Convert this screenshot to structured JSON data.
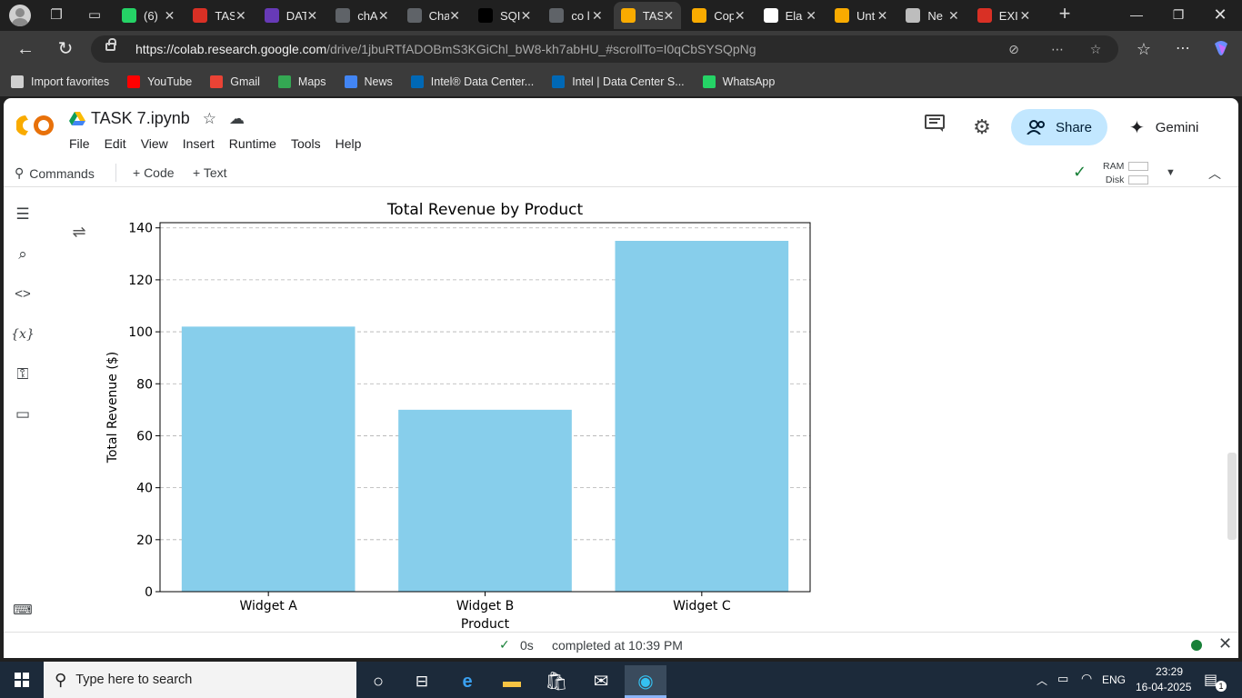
{
  "browser": {
    "tabs": [
      {
        "title": "(6)",
        "icon": "whatsapp-icon",
        "color": "#25d366"
      },
      {
        "title": "TAS",
        "icon": "pdf-icon",
        "color": "#d93025"
      },
      {
        "title": "DAT",
        "icon": "forms-icon",
        "color": "#673ab7"
      },
      {
        "title": "chA",
        "icon": "search-icon",
        "color": "#5f6368"
      },
      {
        "title": "Cha",
        "icon": "chatgpt-icon",
        "color": "#5f6368"
      },
      {
        "title": "SQI",
        "icon": "chatgpt-icon",
        "color": "#000000"
      },
      {
        "title": "co l",
        "icon": "search-icon",
        "color": "#5f6368"
      },
      {
        "title": "TAS",
        "icon": "colab-icon",
        "color": "#f9ab00",
        "active": true
      },
      {
        "title": "Cop",
        "icon": "colab-icon",
        "color": "#f9ab00"
      },
      {
        "title": "Ela",
        "icon": "github-icon",
        "color": "#ffffff"
      },
      {
        "title": "Unt",
        "icon": "colab-icon",
        "color": "#f9ab00"
      },
      {
        "title": "Ne",
        "icon": "page-icon",
        "color": "#bdbdbd"
      },
      {
        "title": "EXI",
        "icon": "pdf-icon",
        "color": "#d93025"
      }
    ],
    "url_host": "https://colab.research.google.com",
    "url_path": "/drive/1jbuRTfADOBmS3KGiChl_bW8-kh7abHU_#scrollTo=I0qCbSYSQpNg",
    "favorites": [
      {
        "label": "Import favorites",
        "icon": "import-icon",
        "color": "#cfcfcf"
      },
      {
        "label": "YouTube",
        "icon": "youtube-icon",
        "color": "#ff0000"
      },
      {
        "label": "Gmail",
        "icon": "gmail-icon",
        "color": "#ea4335"
      },
      {
        "label": "Maps",
        "icon": "maps-icon",
        "color": "#34a853"
      },
      {
        "label": "News",
        "icon": "news-icon",
        "color": "#4285f4"
      },
      {
        "label": "Intel® Data Center...",
        "icon": "intel-icon",
        "color": "#0068b5"
      },
      {
        "label": "Intel | Data Center S...",
        "icon": "intel-icon",
        "color": "#0068b5"
      },
      {
        "label": "WhatsApp",
        "icon": "whatsapp-icon",
        "color": "#25d366"
      }
    ]
  },
  "colab": {
    "notebook_title": "TASK 7.ipynb",
    "menu": [
      "File",
      "Edit",
      "View",
      "Insert",
      "Runtime",
      "Tools",
      "Help"
    ],
    "share_label": "Share",
    "gemini_label": "Gemini",
    "toolbar": {
      "commands": "Commands",
      "code": "+ Code",
      "text": "+ Text",
      "ram": "RAM",
      "disk": "Disk"
    },
    "status": {
      "duration": "0s",
      "completed": "completed at 10:39 PM"
    }
  },
  "chart_data": {
    "type": "bar",
    "title": "Total Revenue by Product",
    "xlabel": "Product",
    "ylabel": "Total Revenue ($)",
    "categories": [
      "Widget A",
      "Widget B",
      "Widget C"
    ],
    "values": [
      102,
      70,
      135
    ],
    "ylim": [
      0,
      142
    ],
    "yticks": [
      0,
      20,
      40,
      60,
      80,
      100,
      120,
      140
    ],
    "bar_color": "#87ceeb",
    "grid": "y dashed"
  },
  "taskbar": {
    "search_placeholder": "Type here to search",
    "lang": "ENG",
    "time": "23:29",
    "date": "16-04-2025",
    "notification_count": "1"
  }
}
